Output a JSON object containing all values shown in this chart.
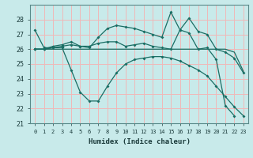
{
  "bg_color": "#c8eaea",
  "grid_color": "#f0b8b8",
  "line_color": "#1a6e64",
  "xlabel": "Humidex (Indice chaleur)",
  "x": [
    0,
    1,
    2,
    3,
    4,
    5,
    6,
    7,
    8,
    9,
    10,
    11,
    12,
    13,
    14,
    15,
    16,
    17,
    18,
    19,
    20,
    21,
    22,
    23
  ],
  "ylim": [
    21,
    29
  ],
  "yticks": [
    21,
    22,
    23,
    24,
    25,
    26,
    27,
    28
  ],
  "lines": [
    {
      "y": [
        27.3,
        26.1,
        26.1,
        null,
        null,
        null,
        null,
        null,
        null,
        null,
        null,
        null,
        null,
        null,
        null,
        null,
        null,
        null,
        null,
        null,
        null,
        null,
        null,
        null
      ],
      "markers": true
    },
    {
      "y": [
        26.0,
        26.0,
        26.1,
        26.1,
        24.6,
        23.1,
        22.5,
        22.5,
        23.5,
        24.4,
        25.0,
        25.3,
        25.4,
        25.5,
        25.5,
        25.4,
        25.2,
        24.9,
        24.6,
        24.2,
        23.5,
        22.8,
        22.1,
        21.5
      ],
      "markers": true
    },
    {
      "y": [
        26.0,
        26.0,
        26.0,
        26.0,
        26.0,
        26.0,
        26.0,
        26.0,
        26.0,
        26.0,
        26.0,
        26.0,
        26.0,
        26.0,
        26.0,
        26.0,
        26.0,
        26.0,
        26.0,
        26.0,
        26.0,
        26.0,
        25.8,
        24.5
      ],
      "markers": false
    },
    {
      "y": [
        26.0,
        26.0,
        26.1,
        26.2,
        26.3,
        26.2,
        26.2,
        26.4,
        26.5,
        26.5,
        26.2,
        26.3,
        26.4,
        26.2,
        26.1,
        26.0,
        27.3,
        28.1,
        27.2,
        27.0,
        26.0,
        25.8,
        25.4,
        24.4
      ],
      "markers": true
    },
    {
      "y": [
        26.0,
        26.0,
        26.2,
        26.3,
        26.5,
        26.2,
        26.1,
        26.8,
        27.4,
        27.6,
        27.5,
        27.4,
        27.2,
        27.0,
        26.8,
        28.5,
        27.3,
        27.1,
        26.0,
        26.1,
        25.3,
        22.2,
        21.5,
        null
      ],
      "markers": true
    }
  ]
}
